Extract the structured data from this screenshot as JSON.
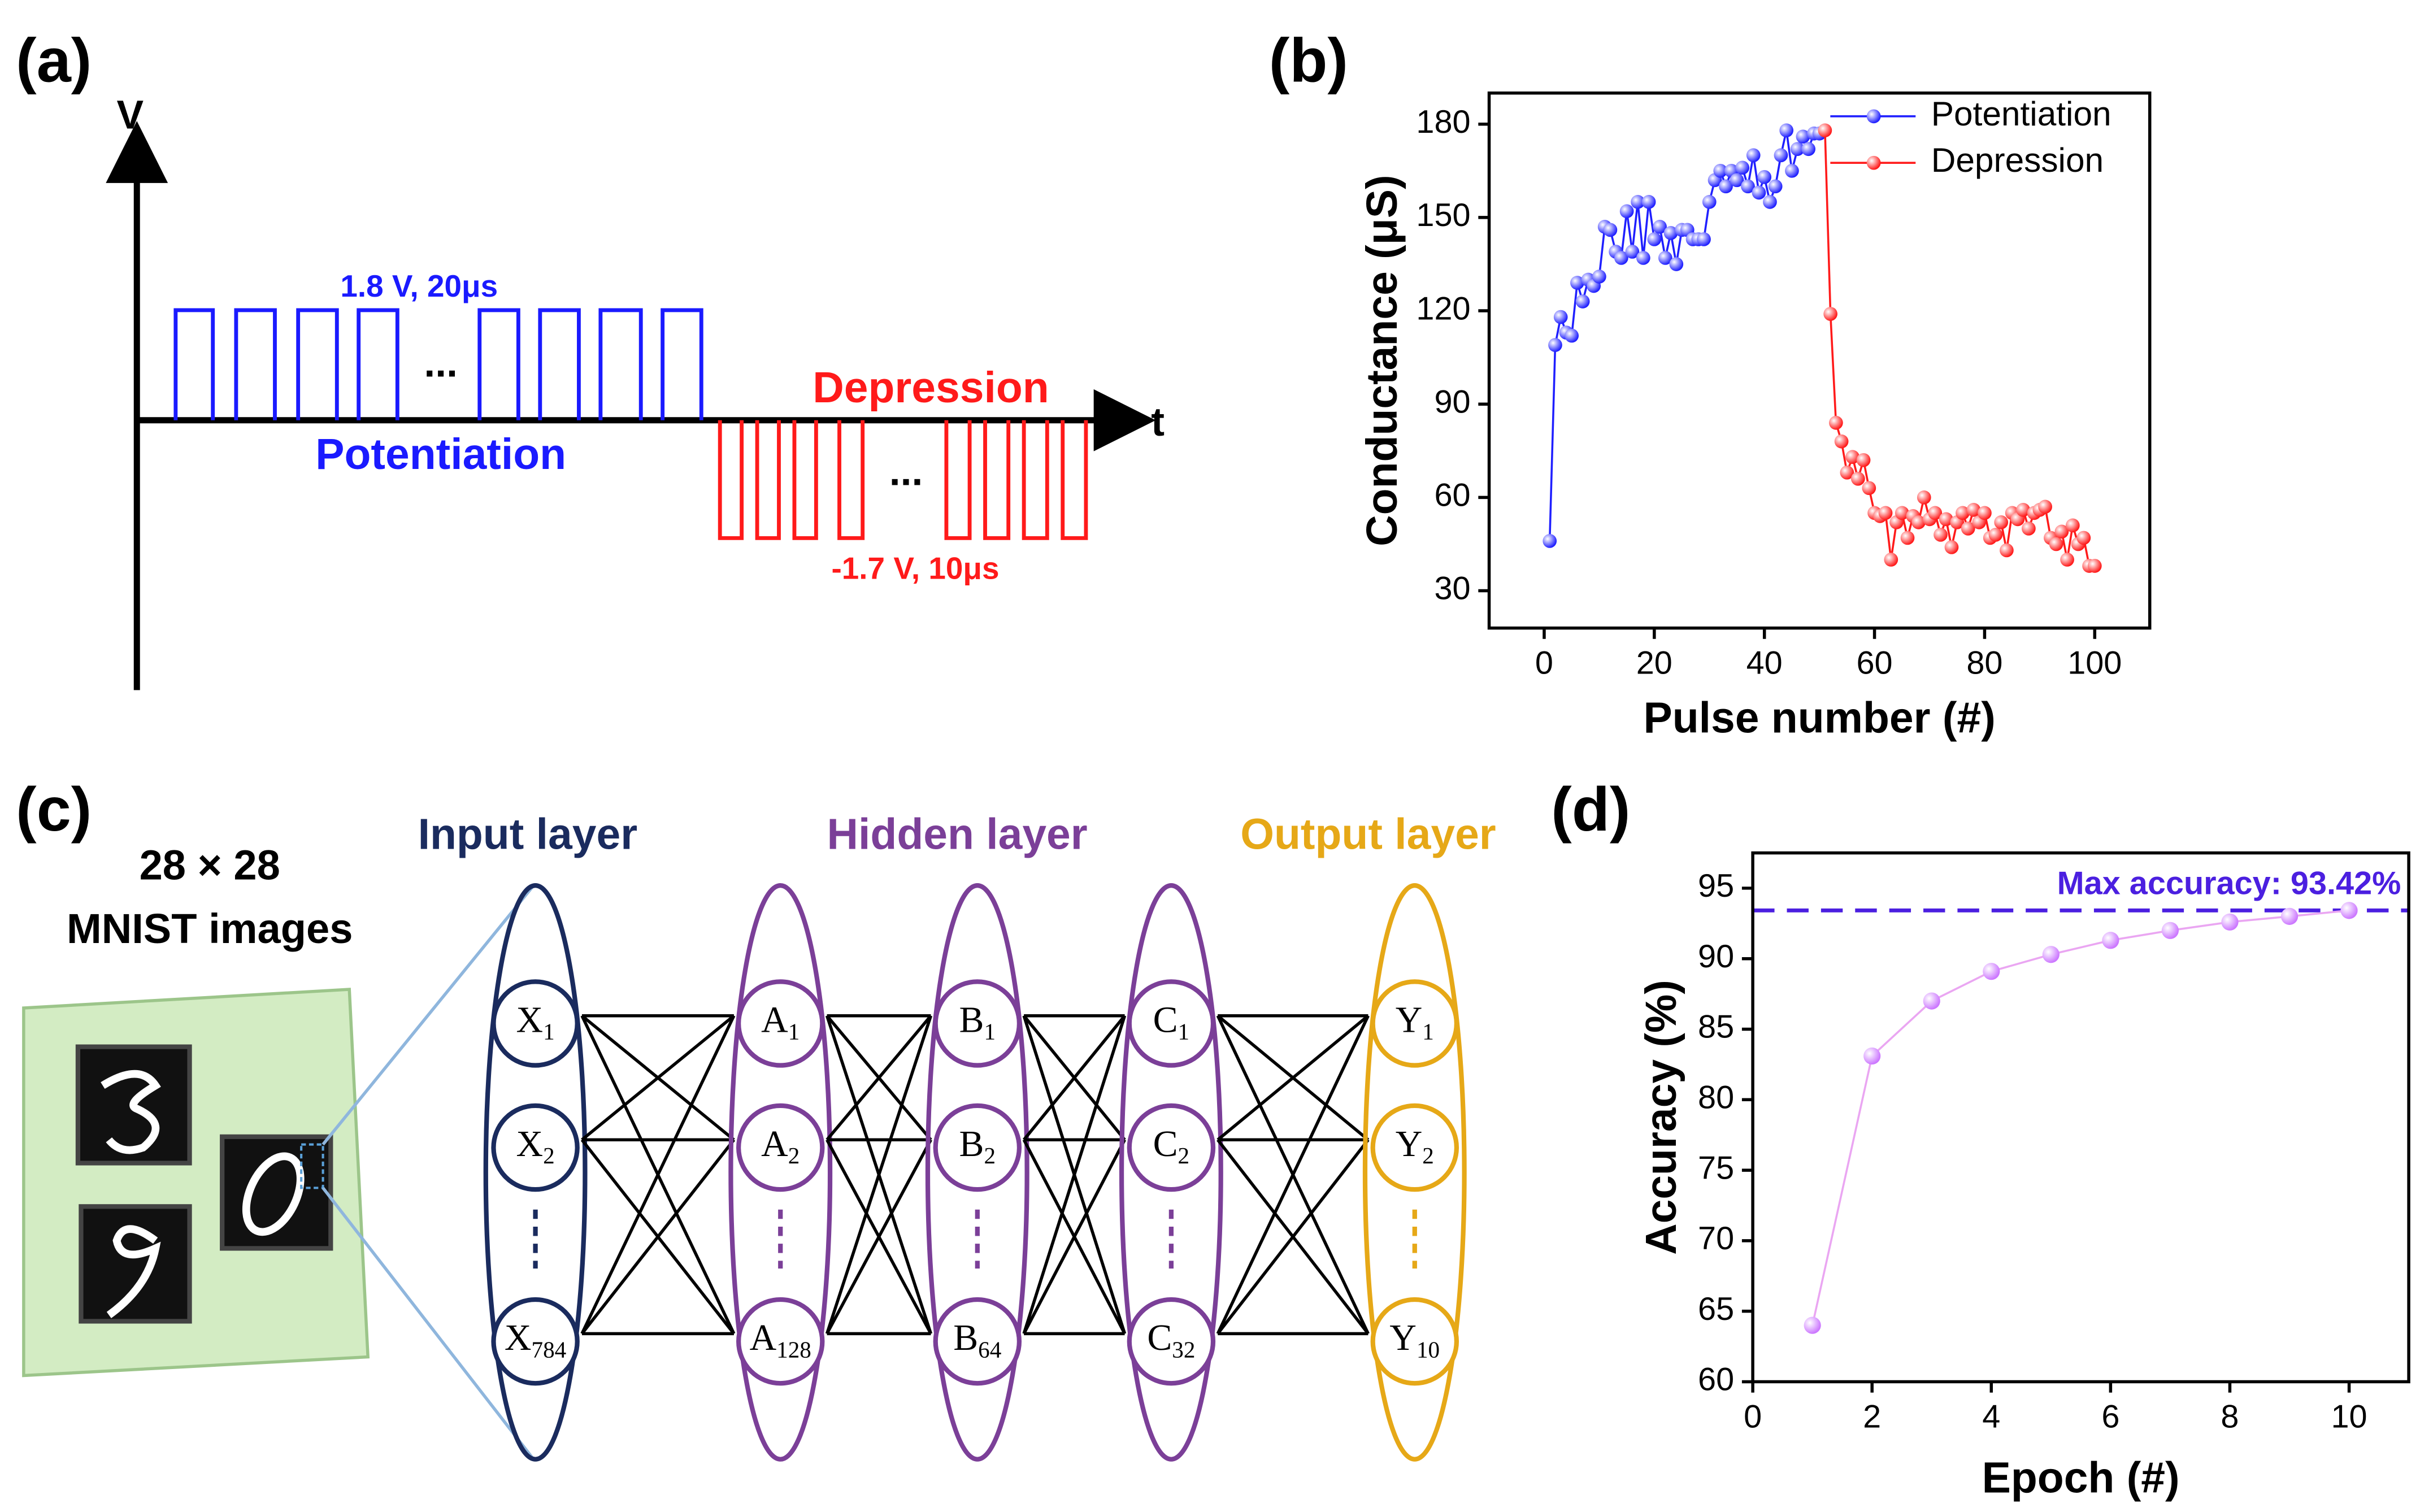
{
  "panels": {
    "a": "(a)",
    "b": "(b)",
    "c": "(c)",
    "d": "(d)"
  },
  "pulses": {
    "v_axis": "V",
    "t_axis": "t",
    "potentiation": {
      "name": "Potentiation",
      "label": "1.8 V, 20μs",
      "gap": "..."
    },
    "depression": {
      "name": "Depression",
      "label": "-1.7 V, 10μs",
      "gap": "..."
    }
  },
  "mnist": {
    "line1": "28 × 28",
    "line2": "MNIST images"
  },
  "network": {
    "layers": [
      "Input layer",
      "Hidden layer",
      "Output layer"
    ],
    "columns": [
      [
        {
          "base": "X",
          "sub": "1"
        },
        {
          "base": "X",
          "sub": "2"
        },
        {
          "base": "X",
          "sub": "784"
        }
      ],
      [
        {
          "base": "A",
          "sub": "1"
        },
        {
          "base": "A",
          "sub": "2"
        },
        {
          "base": "A",
          "sub": "128"
        }
      ],
      [
        {
          "base": "B",
          "sub": "1"
        },
        {
          "base": "B",
          "sub": "2"
        },
        {
          "base": "B",
          "sub": "64"
        }
      ],
      [
        {
          "base": "C",
          "sub": "1"
        },
        {
          "base": "C",
          "sub": "2"
        },
        {
          "base": "C",
          "sub": "32"
        }
      ],
      [
        {
          "base": "Y",
          "sub": "1"
        },
        {
          "base": "Y",
          "sub": "2"
        },
        {
          "base": "Y",
          "sub": "10"
        }
      ]
    ]
  },
  "chart_data": [
    {
      "type": "line",
      "xlabel": "Pulse number (#)",
      "ylabel": "Conductance (μS)",
      "xlim": [
        -10,
        110
      ],
      "ylim": [
        18,
        190
      ],
      "xticks": [
        0,
        20,
        40,
        60,
        80,
        100
      ],
      "yticks": [
        30,
        60,
        90,
        120,
        150,
        180
      ],
      "legend": "upper right",
      "series": [
        {
          "name": "Potentiation",
          "color": "#1f1fff",
          "x": [
            1,
            2,
            3,
            4,
            5,
            6,
            7,
            8,
            9,
            10,
            11,
            12,
            13,
            14,
            15,
            16,
            17,
            18,
            19,
            20,
            21,
            22,
            23,
            24,
            25,
            26,
            27,
            28,
            29,
            30,
            31,
            32,
            33,
            34,
            35,
            36,
            37,
            38,
            39,
            40,
            41,
            42,
            43,
            44,
            45,
            46,
            47,
            48,
            49,
            50
          ],
          "values": [
            46,
            109,
            118,
            113,
            112,
            129,
            123,
            130,
            128,
            131,
            147,
            146,
            139,
            137,
            152,
            139,
            155,
            137,
            155,
            143,
            147,
            137,
            145,
            135,
            146,
            146,
            143,
            143,
            143,
            155,
            162,
            165,
            160,
            165,
            162,
            166,
            160,
            170,
            158,
            163,
            155,
            160,
            170,
            178,
            165,
            172,
            176,
            172,
            177,
            177
          ]
        },
        {
          "name": "Depression",
          "color": "#ff1a1a",
          "x": [
            51,
            52,
            53,
            54,
            55,
            56,
            57,
            58,
            59,
            60,
            61,
            62,
            63,
            64,
            65,
            66,
            67,
            68,
            69,
            70,
            71,
            72,
            73,
            74,
            75,
            76,
            77,
            78,
            79,
            80,
            81,
            82,
            83,
            84,
            85,
            86,
            87,
            88,
            89,
            90,
            91,
            92,
            93,
            94,
            95,
            96,
            97,
            98,
            99,
            100
          ],
          "values": [
            178,
            119,
            84,
            78,
            68,
            73,
            66,
            72,
            63,
            55,
            54,
            55,
            40,
            52,
            55,
            47,
            54,
            52,
            60,
            53,
            55,
            48,
            53,
            44,
            52,
            55,
            50,
            56,
            52,
            55,
            47,
            48,
            52,
            43,
            55,
            53,
            56,
            50,
            55,
            56,
            57,
            47,
            45,
            49,
            40,
            51,
            45,
            47,
            38,
            38
          ]
        }
      ]
    },
    {
      "type": "line",
      "xlabel": "Epoch (#)",
      "ylabel": "Accuracy (%)",
      "xlim": [
        0,
        11
      ],
      "ylim": [
        60,
        97.5
      ],
      "xticks": [
        0,
        2,
        4,
        6,
        8,
        10
      ],
      "yticks": [
        60,
        65,
        70,
        75,
        80,
        85,
        90,
        95
      ],
      "annotation": {
        "value": 93.42,
        "label": "Max accuracy: 93.42%",
        "color": "#4b1fe0"
      },
      "series": [
        {
          "name": "Accuracy",
          "color": "#cc77ff",
          "line_color": "#eaa6f2",
          "x": [
            1,
            2,
            3,
            4,
            5,
            6,
            7,
            8,
            9,
            10
          ],
          "values": [
            64,
            83.1,
            87,
            89.1,
            90.3,
            91.3,
            92,
            92.6,
            93,
            93.42
          ]
        }
      ]
    }
  ]
}
